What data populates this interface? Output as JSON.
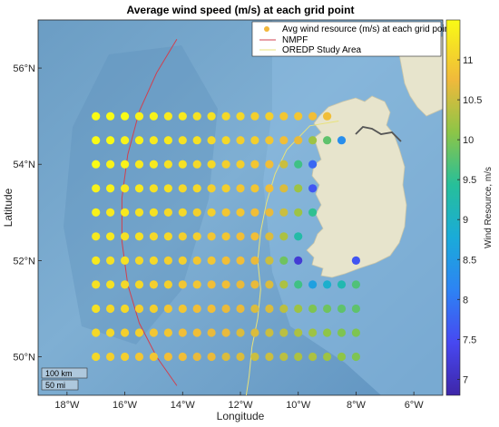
{
  "chart_data": {
    "type": "scatter",
    "title": "Average wind speed (m/s) at each grid point",
    "xlabel": "Longitude",
    "ylabel": "Latitude",
    "xlim": [
      -19,
      -5
    ],
    "ylim": [
      49.2,
      57
    ],
    "xticks": [
      {
        "v": -18,
        "label": "18°W"
      },
      {
        "v": -16,
        "label": "16°W"
      },
      {
        "v": -14,
        "label": "14°W"
      },
      {
        "v": -12,
        "label": "12°W"
      },
      {
        "v": -10,
        "label": "10°W"
      },
      {
        "v": -8,
        "label": "8°W"
      },
      {
        "v": -6,
        "label": "6°W"
      }
    ],
    "yticks": [
      {
        "v": 50,
        "label": "50°N"
      },
      {
        "v": 52,
        "label": "52°N"
      },
      {
        "v": 54,
        "label": "54°N"
      },
      {
        "v": 56,
        "label": "56°N"
      }
    ],
    "colorbar": {
      "label": "Wind Resource, m/s",
      "range": [
        6.8,
        11.5
      ],
      "ticks": [
        {
          "v": 7,
          "label": "7"
        },
        {
          "v": 7.5,
          "label": "7.5"
        },
        {
          "v": 8,
          "label": "8"
        },
        {
          "v": 8.5,
          "label": "8.5"
        },
        {
          "v": 9,
          "label": "9"
        },
        {
          "v": 9.5,
          "label": "9.5"
        },
        {
          "v": 10,
          "label": "10"
        },
        {
          "v": 10.5,
          "label": "10.5"
        },
        {
          "v": 11,
          "label": "11"
        }
      ]
    },
    "legend": {
      "placement": "top-right",
      "entries": [
        {
          "label": "Avg wind resource (m/s) at each grid point",
          "kind": "marker",
          "color": "#f2b73b"
        },
        {
          "label": "NMPF",
          "kind": "line",
          "color": "#d0404f"
        },
        {
          "label": "OREDP Study Area",
          "kind": "line",
          "color": "#e8e27a"
        }
      ]
    },
    "lines": [
      {
        "name": "NMPF",
        "color": "#d0404f",
        "points": [
          [
            -14.2,
            56.6
          ],
          [
            -14.9,
            55.9
          ],
          [
            -15.5,
            55.1
          ],
          [
            -15.9,
            54.2
          ],
          [
            -16.1,
            53.3
          ],
          [
            -16.1,
            52.4
          ],
          [
            -15.9,
            51.5
          ],
          [
            -15.5,
            50.7
          ],
          [
            -14.9,
            50.0
          ],
          [
            -14.2,
            49.4
          ]
        ]
      },
      {
        "name": "OREDP Study Area",
        "color": "#e8e27a",
        "points": [
          [
            -8.6,
            54.9
          ],
          [
            -9.6,
            54.8
          ],
          [
            -10.4,
            54.3
          ],
          [
            -10.8,
            53.8
          ],
          [
            -11.1,
            53.2
          ],
          [
            -11.3,
            52.6
          ],
          [
            -11.4,
            52.0
          ],
          [
            -11.3,
            51.4
          ],
          [
            -11.4,
            50.8
          ],
          [
            -11.6,
            50.2
          ],
          [
            -11.7,
            49.6
          ],
          [
            -11.8,
            49.2
          ]
        ]
      }
    ],
    "series": [
      {
        "y": 55,
        "points": [
          [
            -17,
            11.5
          ],
          [
            -16.5,
            11.5
          ],
          [
            -16,
            11.5
          ],
          [
            -15.5,
            11.4
          ],
          [
            -15,
            11.4
          ],
          [
            -14.5,
            11.3
          ],
          [
            -14,
            11.3
          ],
          [
            -13.5,
            11.2
          ],
          [
            -13,
            11.2
          ],
          [
            -12.5,
            11.1
          ],
          [
            -12,
            11.1
          ],
          [
            -11.5,
            11.0
          ],
          [
            -11,
            11.0
          ],
          [
            -10.5,
            10.9
          ],
          [
            -10,
            10.9
          ],
          [
            -9.5,
            10.8
          ],
          [
            -9,
            10.8
          ]
        ]
      },
      {
        "y": 54.5,
        "points": [
          [
            -17,
            11.5
          ],
          [
            -16.5,
            11.5
          ],
          [
            -16,
            11.4
          ],
          [
            -15.5,
            11.4
          ],
          [
            -15,
            11.3
          ],
          [
            -14.5,
            11.3
          ],
          [
            -14,
            11.2
          ],
          [
            -13.5,
            11.2
          ],
          [
            -13,
            11.1
          ],
          [
            -12.5,
            11.1
          ],
          [
            -12,
            11.0
          ],
          [
            -11.5,
            11.0
          ],
          [
            -11,
            10.9
          ],
          [
            -10.5,
            10.8
          ],
          [
            -10,
            10.7
          ],
          [
            -9.5,
            10.2
          ],
          [
            -9,
            9.8
          ],
          [
            -8.5,
            8.3
          ]
        ]
      },
      {
        "y": 54,
        "points": [
          [
            -17,
            11.5
          ],
          [
            -16.5,
            11.4
          ],
          [
            -16,
            11.4
          ],
          [
            -15.5,
            11.3
          ],
          [
            -15,
            11.3
          ],
          [
            -14.5,
            11.2
          ],
          [
            -14,
            11.2
          ],
          [
            -13.5,
            11.1
          ],
          [
            -13,
            11.1
          ],
          [
            -12.5,
            11.0
          ],
          [
            -12,
            11.0
          ],
          [
            -11.5,
            10.9
          ],
          [
            -11,
            10.8
          ],
          [
            -10.5,
            10.5
          ],
          [
            -10,
            9.6
          ],
          [
            -9.5,
            7.8
          ]
        ]
      },
      {
        "y": 53.5,
        "points": [
          [
            -17,
            11.4
          ],
          [
            -16.5,
            11.4
          ],
          [
            -16,
            11.3
          ],
          [
            -15.5,
            11.3
          ],
          [
            -15,
            11.2
          ],
          [
            -14.5,
            11.2
          ],
          [
            -14,
            11.1
          ],
          [
            -13.5,
            11.1
          ],
          [
            -13,
            11.0
          ],
          [
            -12.5,
            11.0
          ],
          [
            -12,
            10.9
          ],
          [
            -11.5,
            10.9
          ],
          [
            -11,
            10.8
          ],
          [
            -10.5,
            10.6
          ],
          [
            -10,
            10.2
          ],
          [
            -9.5,
            7.6
          ]
        ]
      },
      {
        "y": 53,
        "points": [
          [
            -17,
            11.4
          ],
          [
            -16.5,
            11.3
          ],
          [
            -16,
            11.3
          ],
          [
            -15.5,
            11.2
          ],
          [
            -15,
            11.2
          ],
          [
            -14.5,
            11.1
          ],
          [
            -14,
            11.1
          ],
          [
            -13.5,
            11.0
          ],
          [
            -13,
            11.0
          ],
          [
            -12.5,
            10.9
          ],
          [
            -12,
            10.9
          ],
          [
            -11.5,
            10.8
          ],
          [
            -11,
            10.7
          ],
          [
            -10.5,
            10.5
          ],
          [
            -10,
            10.2
          ],
          [
            -9.5,
            9.5
          ]
        ]
      },
      {
        "y": 52.5,
        "points": [
          [
            -17,
            11.3
          ],
          [
            -16.5,
            11.3
          ],
          [
            -16,
            11.2
          ],
          [
            -15.5,
            11.2
          ],
          [
            -15,
            11.1
          ],
          [
            -14.5,
            11.1
          ],
          [
            -14,
            11.0
          ],
          [
            -13.5,
            11.0
          ],
          [
            -13,
            10.9
          ],
          [
            -12.5,
            10.9
          ],
          [
            -12,
            10.8
          ],
          [
            -11.5,
            10.8
          ],
          [
            -11,
            10.6
          ],
          [
            -10.5,
            10.3
          ],
          [
            -10,
            9.3
          ]
        ]
      },
      {
        "y": 52,
        "points": [
          [
            -17,
            11.3
          ],
          [
            -16.5,
            11.2
          ],
          [
            -16,
            11.2
          ],
          [
            -15.5,
            11.1
          ],
          [
            -15,
            11.1
          ],
          [
            -14.5,
            11.0
          ],
          [
            -14,
            11.0
          ],
          [
            -13.5,
            10.9
          ],
          [
            -13,
            10.9
          ],
          [
            -12.5,
            10.8
          ],
          [
            -12,
            10.8
          ],
          [
            -11.5,
            10.7
          ],
          [
            -11,
            10.5
          ],
          [
            -10.5,
            9.9
          ],
          [
            -10,
            7.2
          ],
          [
            -8,
            7.6
          ]
        ]
      },
      {
        "y": 51.5,
        "points": [
          [
            -17,
            11.2
          ],
          [
            -16.5,
            11.2
          ],
          [
            -16,
            11.1
          ],
          [
            -15.5,
            11.1
          ],
          [
            -15,
            11.0
          ],
          [
            -14.5,
            11.0
          ],
          [
            -14,
            10.9
          ],
          [
            -13.5,
            10.9
          ],
          [
            -13,
            10.8
          ],
          [
            -12.5,
            10.8
          ],
          [
            -12,
            10.7
          ],
          [
            -11.5,
            10.7
          ],
          [
            -11,
            10.6
          ],
          [
            -10.5,
            10.3
          ],
          [
            -10,
            9.6
          ],
          [
            -9.5,
            8.6
          ],
          [
            -9,
            8.9
          ],
          [
            -8.5,
            9.2
          ],
          [
            -8,
            9.7
          ]
        ]
      },
      {
        "y": 51,
        "points": [
          [
            -17,
            11.2
          ],
          [
            -16.5,
            11.1
          ],
          [
            -16,
            11.1
          ],
          [
            -15.5,
            11.0
          ],
          [
            -15,
            11.0
          ],
          [
            -14.5,
            10.9
          ],
          [
            -14,
            10.9
          ],
          [
            -13.5,
            10.8
          ],
          [
            -13,
            10.8
          ],
          [
            -12.5,
            10.7
          ],
          [
            -12,
            10.7
          ],
          [
            -11.5,
            10.6
          ],
          [
            -11,
            10.6
          ],
          [
            -10.5,
            10.4
          ],
          [
            -10,
            10.2
          ],
          [
            -9.5,
            10.0
          ],
          [
            -9,
            9.9
          ],
          [
            -8.5,
            9.8
          ],
          [
            -8,
            9.8
          ]
        ]
      },
      {
        "y": 50.5,
        "points": [
          [
            -17,
            11.1
          ],
          [
            -16.5,
            11.1
          ],
          [
            -16,
            11.0
          ],
          [
            -15.5,
            11.0
          ],
          [
            -15,
            10.9
          ],
          [
            -14.5,
            10.9
          ],
          [
            -14,
            10.8
          ],
          [
            -13.5,
            10.8
          ],
          [
            -13,
            10.7
          ],
          [
            -12.5,
            10.7
          ],
          [
            -12,
            10.6
          ],
          [
            -11.5,
            10.6
          ],
          [
            -11,
            10.5
          ],
          [
            -10.5,
            10.4
          ],
          [
            -10,
            10.3
          ],
          [
            -9.5,
            10.2
          ],
          [
            -9,
            10.1
          ],
          [
            -8.5,
            10.0
          ],
          [
            -8,
            10.0
          ]
        ]
      },
      {
        "y": 50,
        "points": [
          [
            -17,
            11.1
          ],
          [
            -16.5,
            11.0
          ],
          [
            -16,
            11.0
          ],
          [
            -15.5,
            10.9
          ],
          [
            -15,
            10.9
          ],
          [
            -14.5,
            10.8
          ],
          [
            -14,
            10.8
          ],
          [
            -13.5,
            10.7
          ],
          [
            -13,
            10.7
          ],
          [
            -12.5,
            10.6
          ],
          [
            -12,
            10.6
          ],
          [
            -11.5,
            10.5
          ],
          [
            -11,
            10.5
          ],
          [
            -10.5,
            10.4
          ],
          [
            -10,
            10.3
          ],
          [
            -9.5,
            10.3
          ],
          [
            -9,
            10.2
          ],
          [
            -8.5,
            10.1
          ],
          [
            -8,
            10.0
          ]
        ]
      }
    ],
    "scalebar": [
      {
        "label": "100 km"
      },
      {
        "label": "50 mi"
      }
    ]
  }
}
